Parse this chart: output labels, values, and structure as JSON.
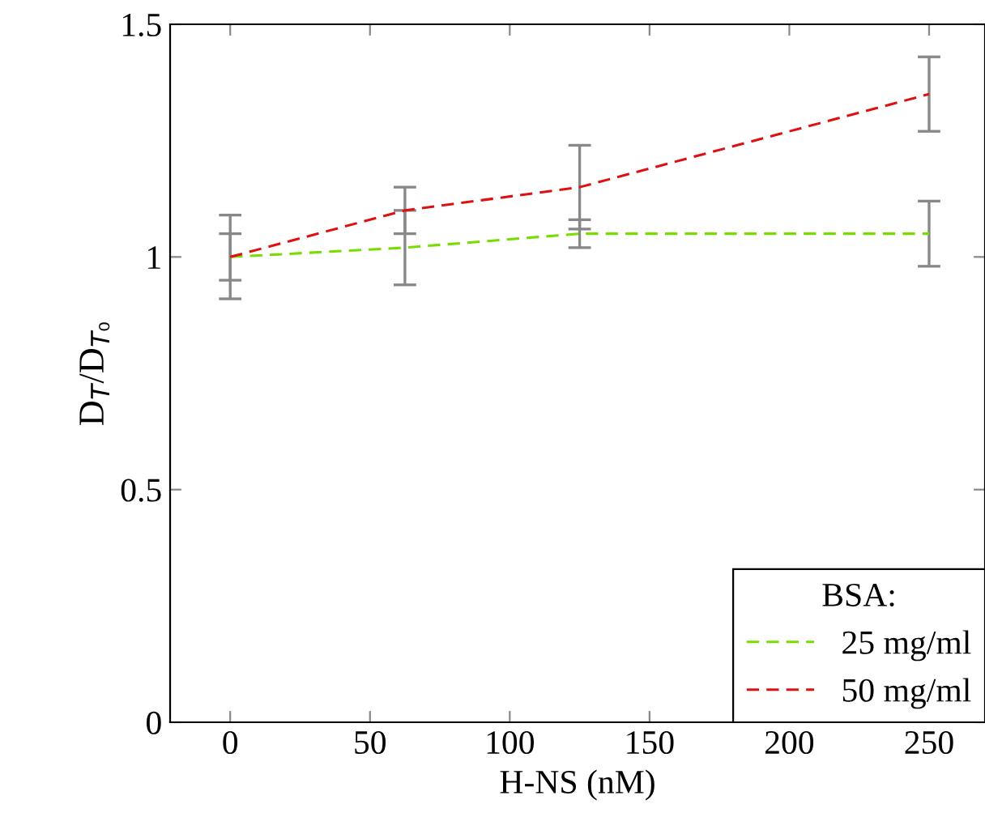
{
  "chart_data": {
    "type": "line",
    "xlabel": "H-NS (nM)",
    "ylabel": "D$_{T}$/D$_{T₀}$",
    "legend_title": "BSA:",
    "legend": "bottom right",
    "grid": false,
    "marker": "none",
    "line_style": "dashed",
    "x": [
      0,
      62.5,
      125,
      250
    ],
    "xlim": [
      -21.5,
      270
    ],
    "xticks": [
      0,
      50,
      100,
      150,
      200,
      250
    ],
    "ylim": [
      0,
      1.5
    ],
    "yticks": [
      0,
      0.5,
      1,
      1.5
    ],
    "series": [
      {
        "name": "25 mg/ml",
        "color": "#77dd00",
        "values": [
          1.0,
          1.02,
          1.05,
          1.05
        ],
        "errors": [
          0.05,
          0.08,
          0.03,
          0.07
        ]
      },
      {
        "name": "50 mg/ml",
        "color": "#dd1111",
        "values": [
          1.0,
          1.1,
          1.15,
          1.35
        ],
        "errors": [
          0.09,
          0.05,
          0.09,
          0.08
        ]
      }
    ]
  }
}
